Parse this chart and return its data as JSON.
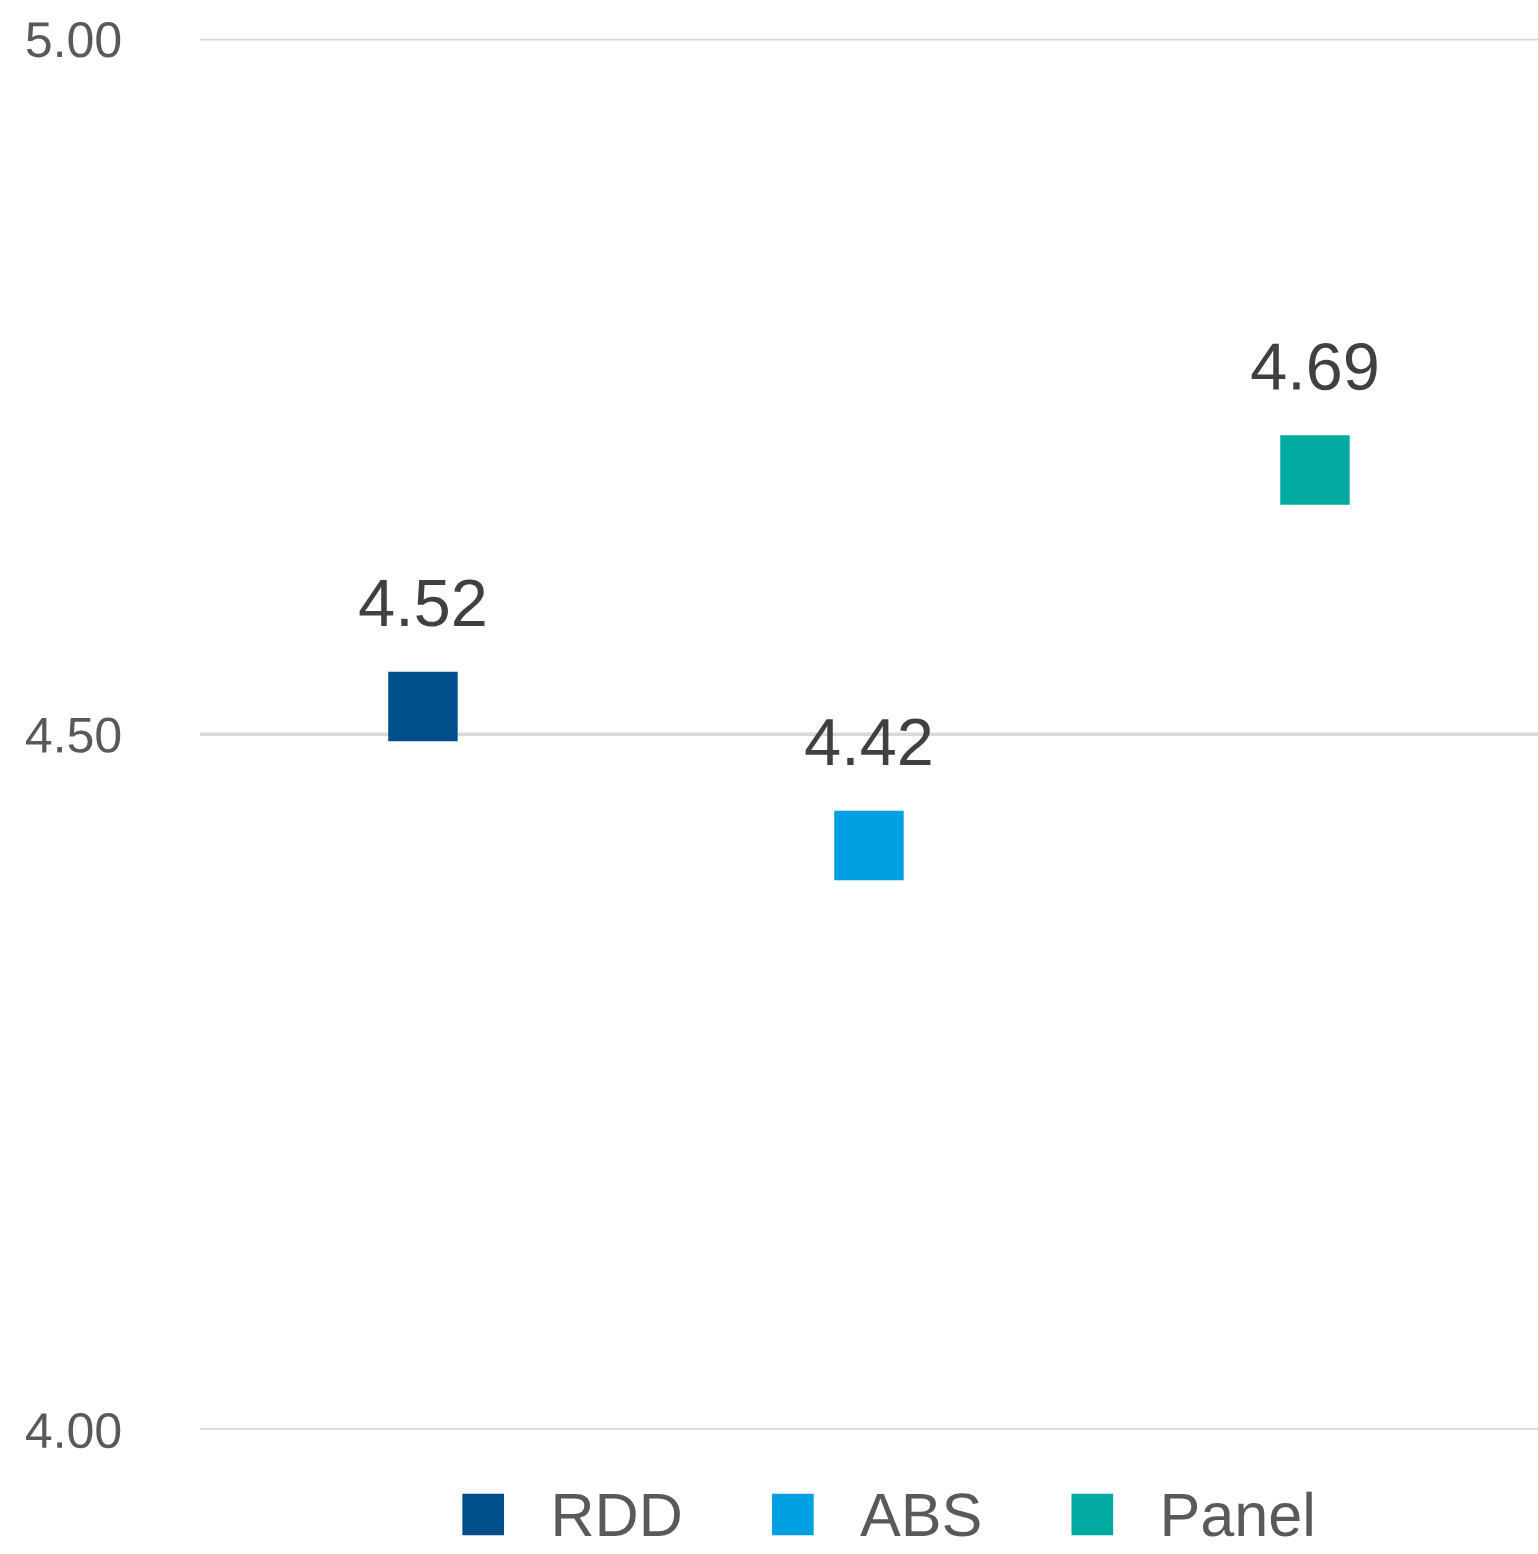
{
  "chart_data": {
    "type": "scatter",
    "categories": [
      null,
      null,
      null
    ],
    "series": [
      {
        "name": "RDD",
        "color": "#004f8a",
        "values": [
          4.52,
          null,
          null
        ]
      },
      {
        "name": "ABS",
        "color": "#00a0e2",
        "values": [
          null,
          4.42,
          null
        ]
      },
      {
        "name": "Panel",
        "color": "#00aaa0",
        "values": [
          null,
          null,
          4.69
        ]
      }
    ],
    "ylim": [
      4,
      5
    ],
    "yticks": [
      {
        "value": 4,
        "label": "4.00"
      },
      {
        "value": 4.5,
        "label": "4.50"
      },
      {
        "value": 5,
        "label": "5.00"
      }
    ],
    "marker": "square",
    "data_labels": true,
    "grid": "y",
    "legend": "bottom",
    "tick_labels": "y"
  }
}
